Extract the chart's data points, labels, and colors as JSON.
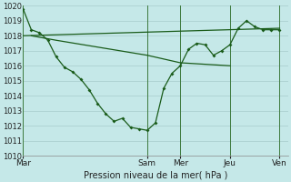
{
  "xlabel": "Pression niveau de la mer( hPa )",
  "background_color": "#c5e8e8",
  "grid_color": "#a8cccc",
  "line_color": "#1a5c1a",
  "ylim": [
    1010,
    1020
  ],
  "yticks": [
    1010,
    1011,
    1012,
    1013,
    1014,
    1015,
    1016,
    1017,
    1018,
    1019,
    1020
  ],
  "xtick_labels": [
    "Mar",
    "Sam",
    "Mer",
    "Jeu",
    "Ven"
  ],
  "xtick_positions": [
    0,
    15,
    19,
    25,
    31
  ],
  "xlim": [
    0,
    32
  ],
  "series_main": {
    "x": [
      0,
      1,
      2,
      3,
      4,
      5,
      6,
      7,
      8,
      9,
      10,
      11,
      12,
      13,
      14,
      15,
      16,
      17,
      18,
      19,
      20,
      21,
      22,
      23,
      24,
      25,
      26,
      27,
      28,
      29,
      30,
      31
    ],
    "y": [
      1019.8,
      1018.4,
      1018.2,
      1017.7,
      1016.6,
      1015.9,
      1015.6,
      1015.1,
      1014.4,
      1013.5,
      1012.8,
      1012.3,
      1012.5,
      1011.9,
      1011.8,
      1011.7,
      1012.2,
      1014.5,
      1015.5,
      1016.0,
      1017.1,
      1017.5,
      1017.4,
      1016.7,
      1017.0,
      1017.4,
      1018.5,
      1019.0,
      1018.6,
      1018.4,
      1018.4,
      1018.4
    ]
  },
  "series_flat": {
    "x": [
      0,
      31
    ],
    "y": [
      1018.0,
      1018.5
    ]
  },
  "series_diag": {
    "x": [
      1,
      2,
      4,
      15,
      19,
      25
    ],
    "y": [
      1018.0,
      1017.9,
      1017.7,
      1016.7,
      1016.2,
      1016.0
    ]
  }
}
